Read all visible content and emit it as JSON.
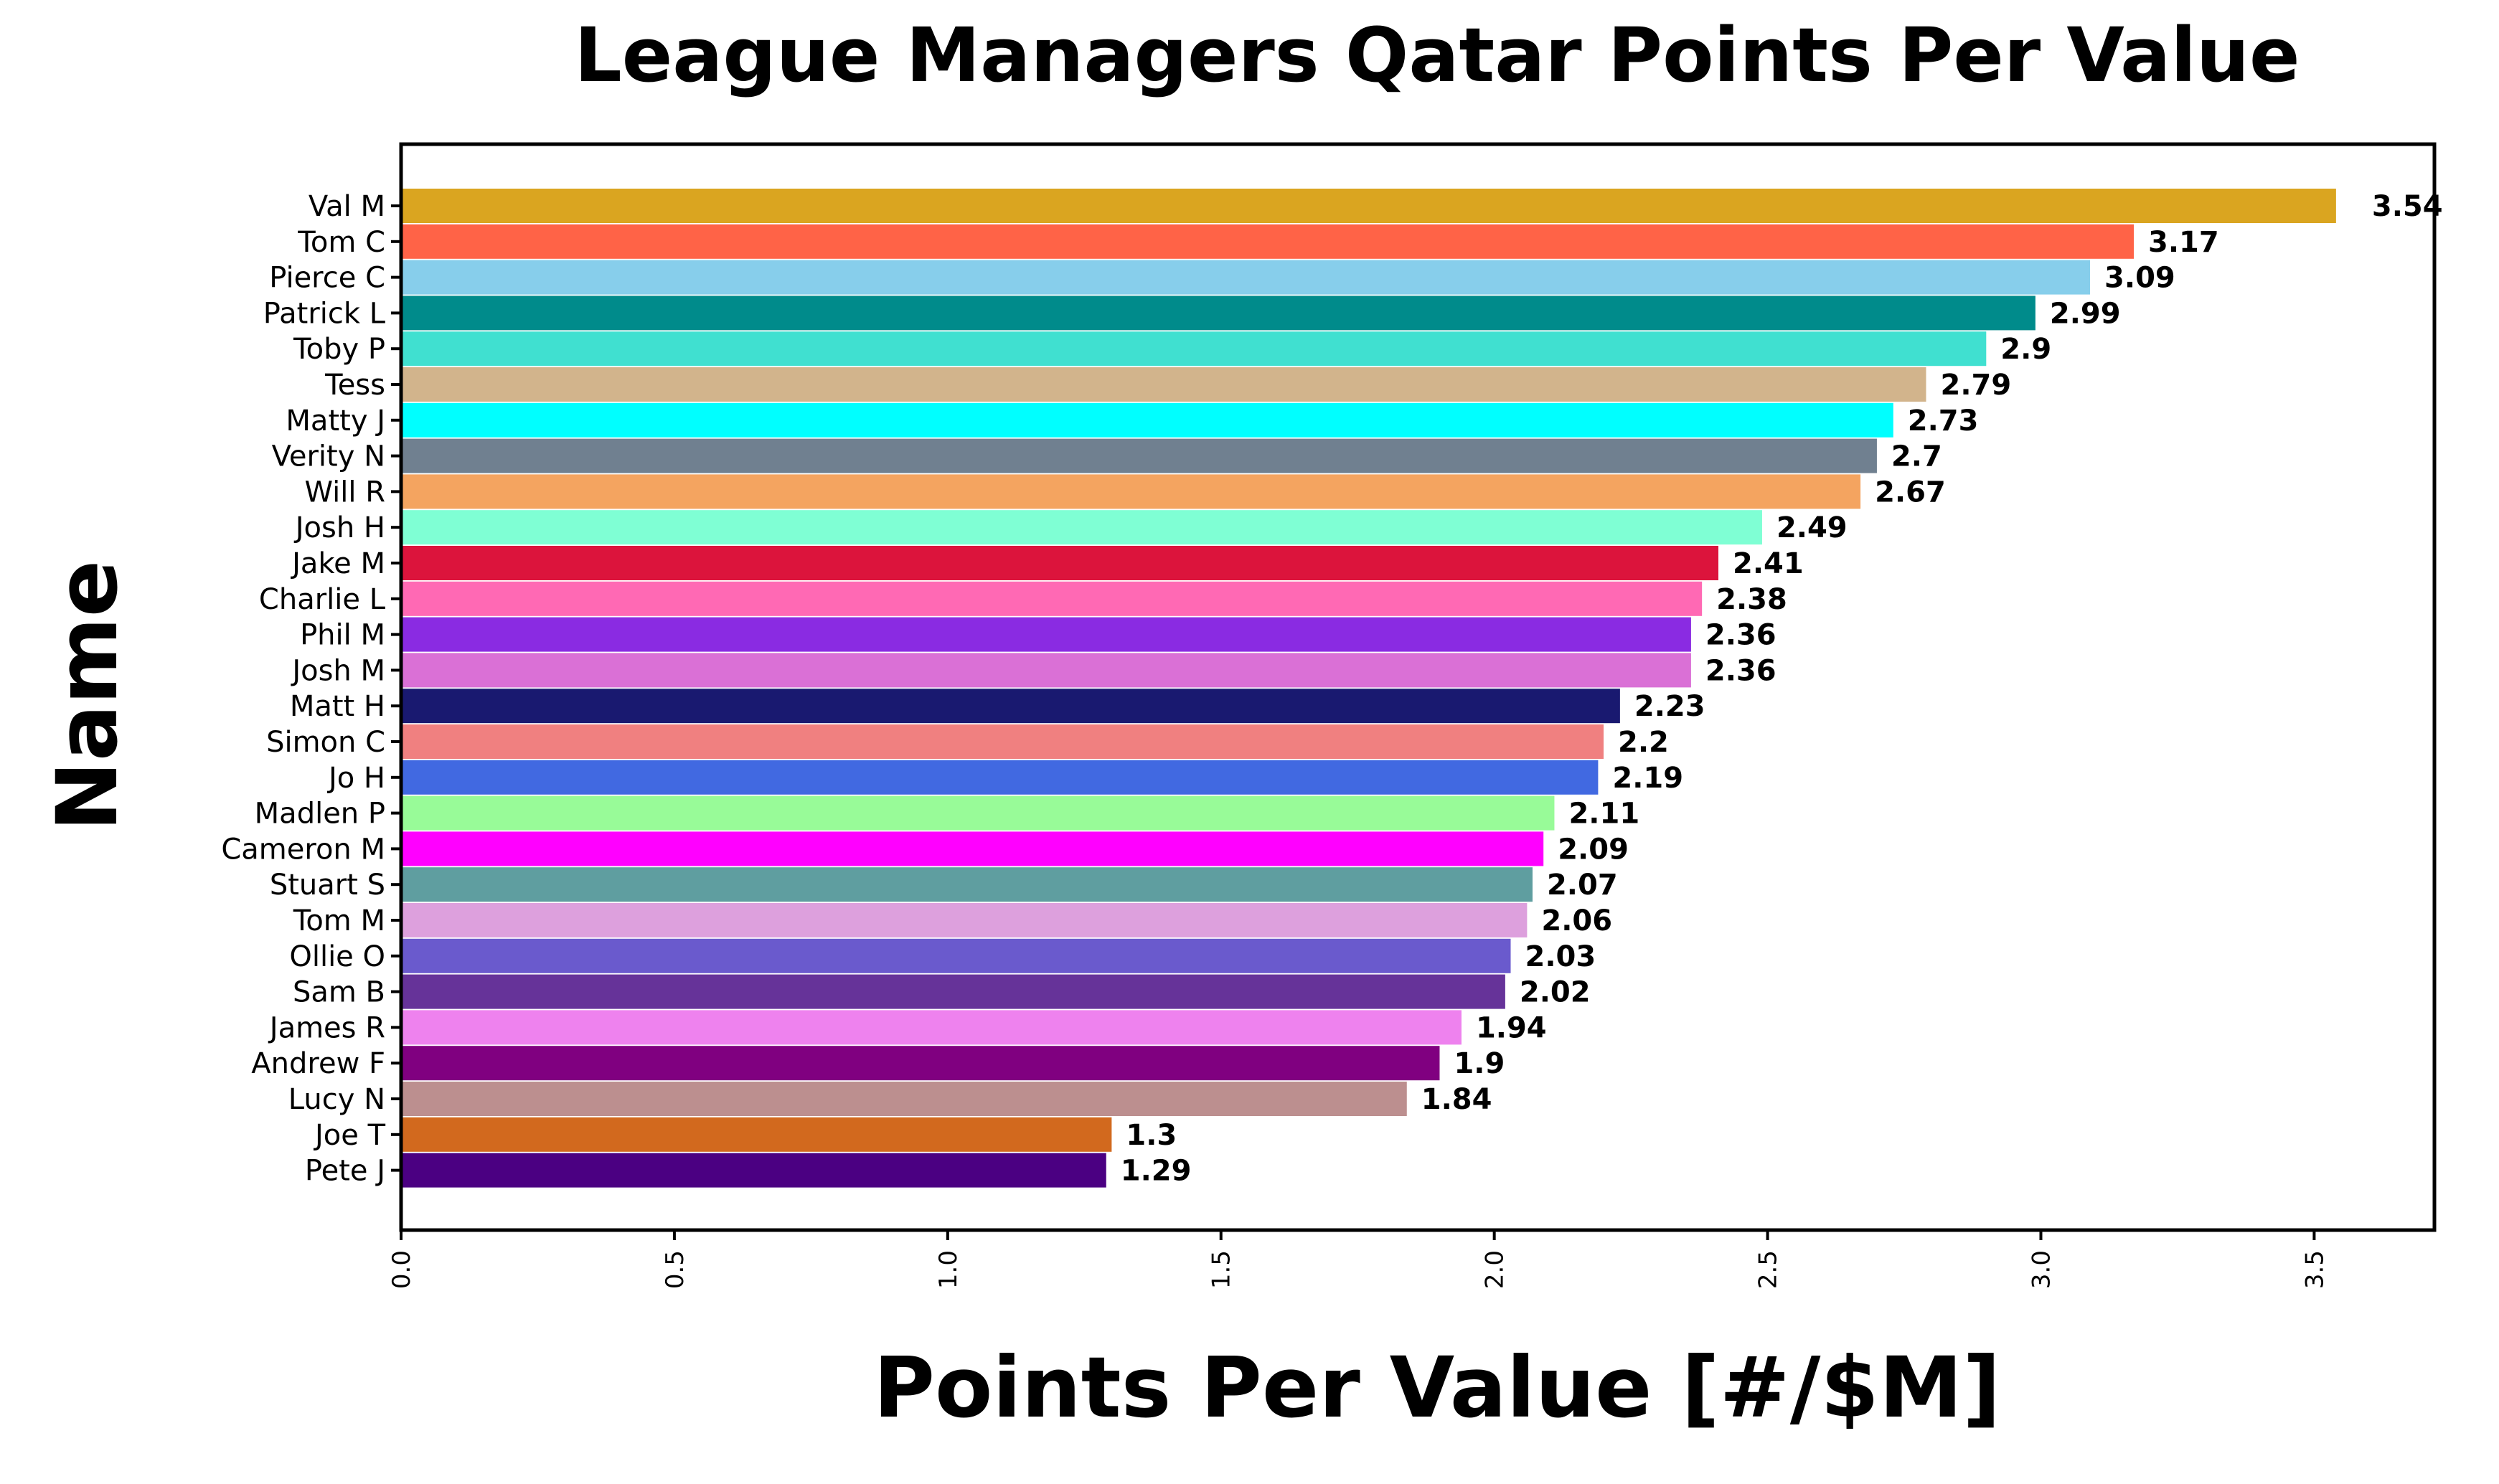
{
  "chart_data": {
    "type": "bar",
    "orientation": "horizontal",
    "title": "League Managers Qatar Points Per Value",
    "xlabel": "Points Per Value [#/$M]",
    "ylabel": "Name",
    "xlim": [
      0,
      3.72
    ],
    "xticks": [
      "0.0",
      "0.5",
      "1.0",
      "1.5",
      "2.0",
      "2.5",
      "3.0",
      "3.5"
    ],
    "grid": false,
    "legend": "none",
    "categories": [
      "Val M",
      "Tom C",
      "Pierce C",
      "Patrick L",
      "Toby P",
      "Tess",
      "Matty J",
      "Verity N",
      "Will R",
      "Josh H",
      "Jake M",
      "Charlie L",
      "Phil M",
      "Josh M",
      "Matt H",
      "Simon C",
      "Jo H",
      "Madlen P",
      "Cameron M",
      "Stuart S",
      "Tom M",
      "Ollie O",
      "Sam B",
      "James R",
      "Andrew F",
      "Lucy N",
      "Joe T",
      "Pete J"
    ],
    "values": [
      3.54,
      3.17,
      3.09,
      2.99,
      2.9,
      2.79,
      2.73,
      2.7,
      2.67,
      2.49,
      2.41,
      2.38,
      2.36,
      2.36,
      2.23,
      2.2,
      2.19,
      2.11,
      2.09,
      2.07,
      2.06,
      2.03,
      2.02,
      1.94,
      1.9,
      1.84,
      1.3,
      1.29
    ],
    "value_labels": [
      "3.54",
      "3.17",
      "3.09",
      "2.99",
      "2.9",
      "2.79",
      "2.73",
      "2.7",
      "2.67",
      "2.49",
      "2.41",
      "2.38",
      "2.36",
      "2.36",
      "2.23",
      "2.2",
      "2.19",
      "2.11",
      "2.09",
      "2.07",
      "2.06",
      "2.03",
      "2.02",
      "1.94",
      "1.9",
      "1.84",
      "1.3",
      "1.29"
    ],
    "colors": [
      "#DAA520",
      "#FF6347",
      "#87CEEB",
      "#008B8B",
      "#40E0D0",
      "#D2B48C",
      "#00FFFF",
      "#708090",
      "#F4A460",
      "#7FFFD4",
      "#DC143C",
      "#FF69B4",
      "#8A2BE2",
      "#DA70D6",
      "#191970",
      "#F08080",
      "#4169E1",
      "#98FB98",
      "#FF00FF",
      "#5F9EA0",
      "#DDA0DD",
      "#6A5ACD",
      "#663399",
      "#EE82EE",
      "#800080",
      "#BC8F8F",
      "#D2691E",
      "#4B0082"
    ]
  }
}
